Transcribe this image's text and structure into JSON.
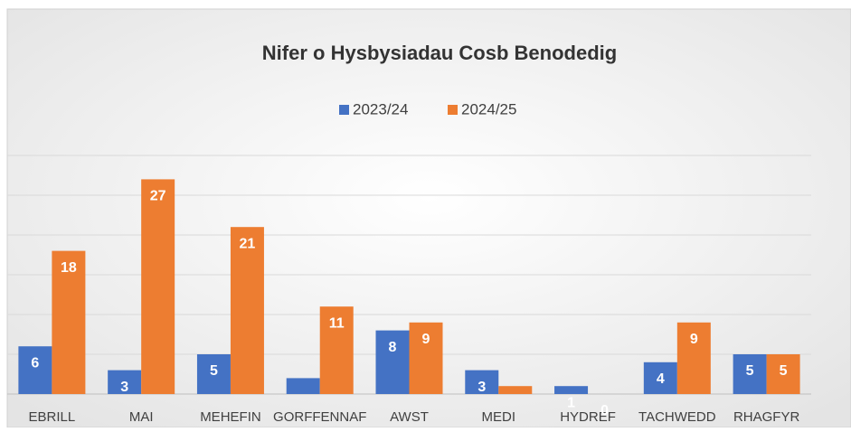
{
  "chart_data": {
    "type": "bar",
    "title": "Nifer o Hysbysiadau Cosb Benodedig",
    "categories": [
      "EBRILL",
      "MAI",
      "MEHEFIN",
      "GORFFENNAF",
      "AWST",
      "MEDI",
      "HYDREF",
      "TACHWEDD",
      "RHAGFYR"
    ],
    "series": [
      {
        "name": "2023/24",
        "color": "#4472c4",
        "values": [
          6,
          3,
          5,
          2,
          8,
          3,
          1,
          4,
          5
        ],
        "value_labels": [
          "6",
          "3",
          "5",
          null,
          "8",
          "3",
          "1",
          "4",
          "5"
        ]
      },
      {
        "name": "2024/25",
        "color": "#ed7d31",
        "values": [
          18,
          27,
          21,
          11,
          9,
          1,
          0,
          9,
          5
        ],
        "value_labels": [
          "18",
          "27",
          "21",
          "11",
          "9",
          null,
          "0",
          "9",
          "5"
        ]
      }
    ],
    "ylim": [
      0,
      30
    ],
    "yticks": [
      0,
      5,
      10,
      15,
      20,
      25,
      30
    ],
    "grid": true,
    "legend": "top"
  }
}
